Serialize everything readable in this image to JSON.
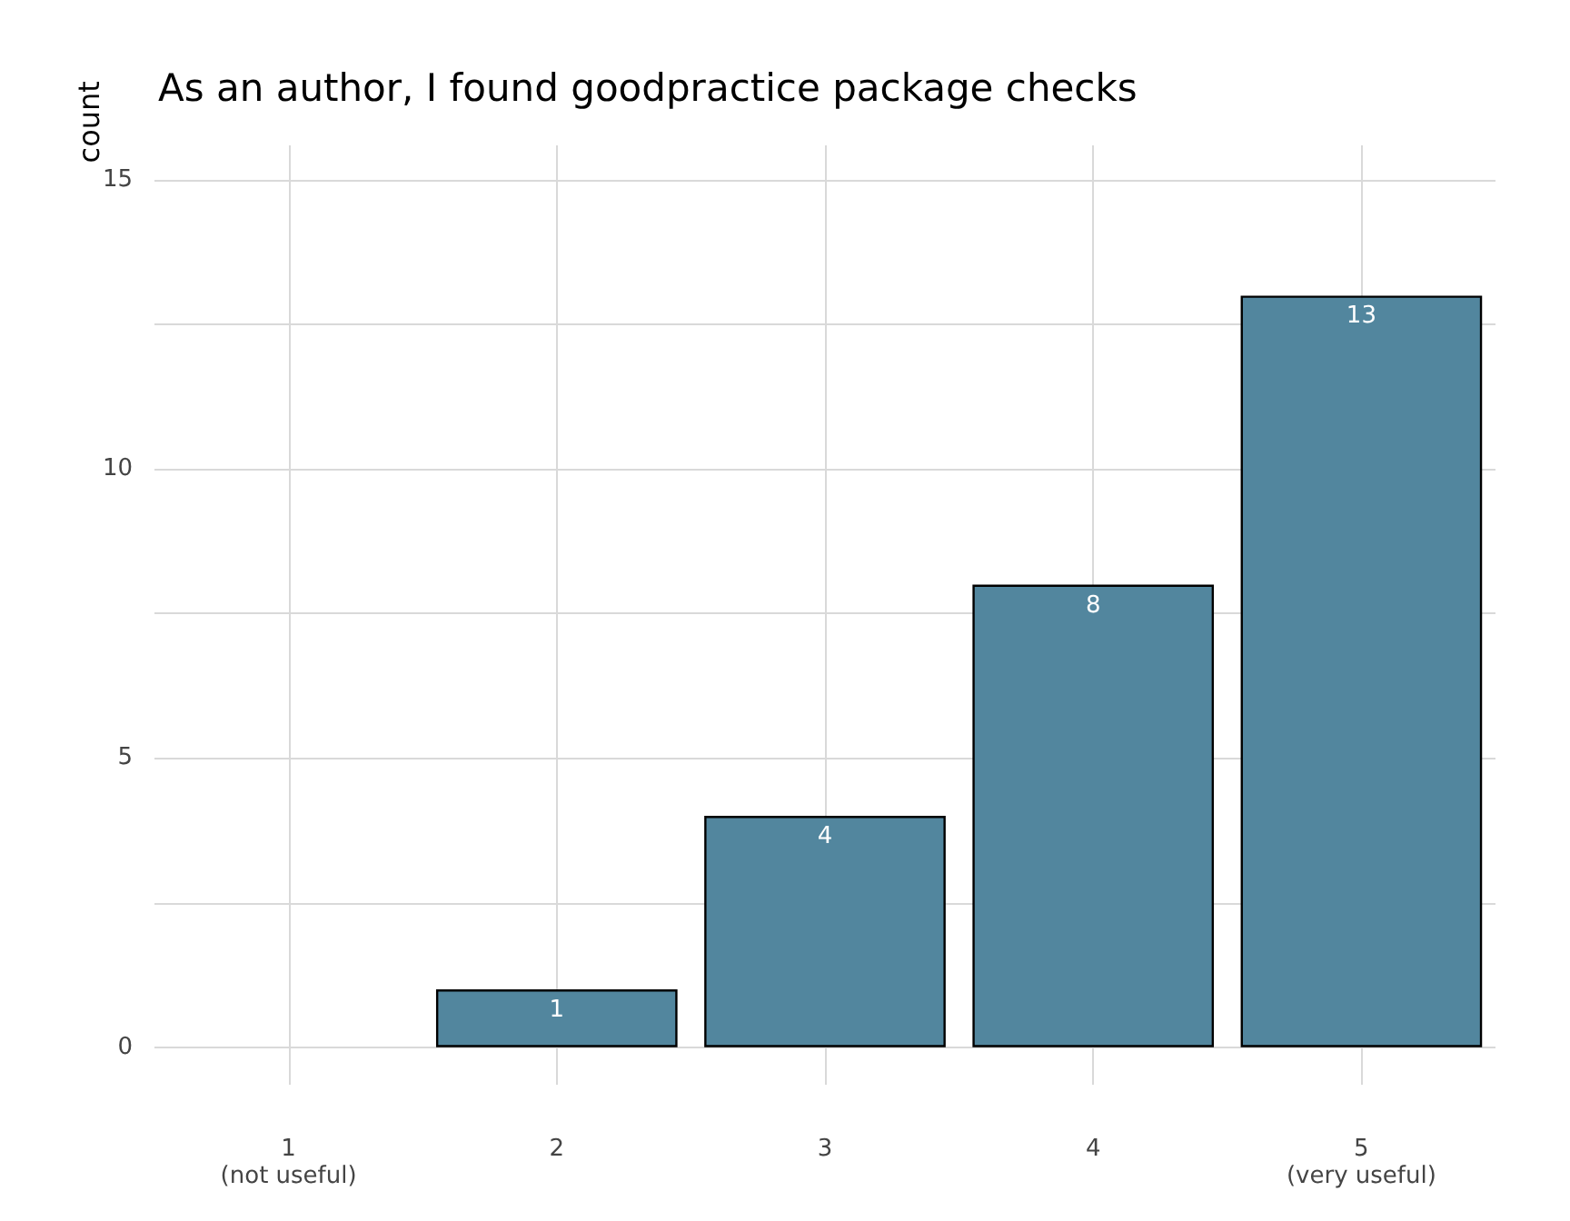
{
  "chart_data": {
    "type": "bar",
    "title": "As an author, I found goodpractice package checks",
    "ylabel": "count",
    "categories": [
      "1\n(not useful)",
      "2",
      "3",
      "4",
      "5\n(very useful)"
    ],
    "values": [
      null,
      1,
      4,
      8,
      13
    ],
    "value_labels": [
      null,
      "1",
      "4",
      "8",
      "13"
    ],
    "color": "#52869e",
    "ylim": [
      -0.65,
      15.6
    ],
    "yticks": [
      0,
      {
        "value": 2.5,
        "label": null
      },
      5,
      {
        "value": 7.5,
        "label": null
      },
      10,
      {
        "value": 12.5,
        "label": null
      },
      15
    ],
    "grid": true
  }
}
